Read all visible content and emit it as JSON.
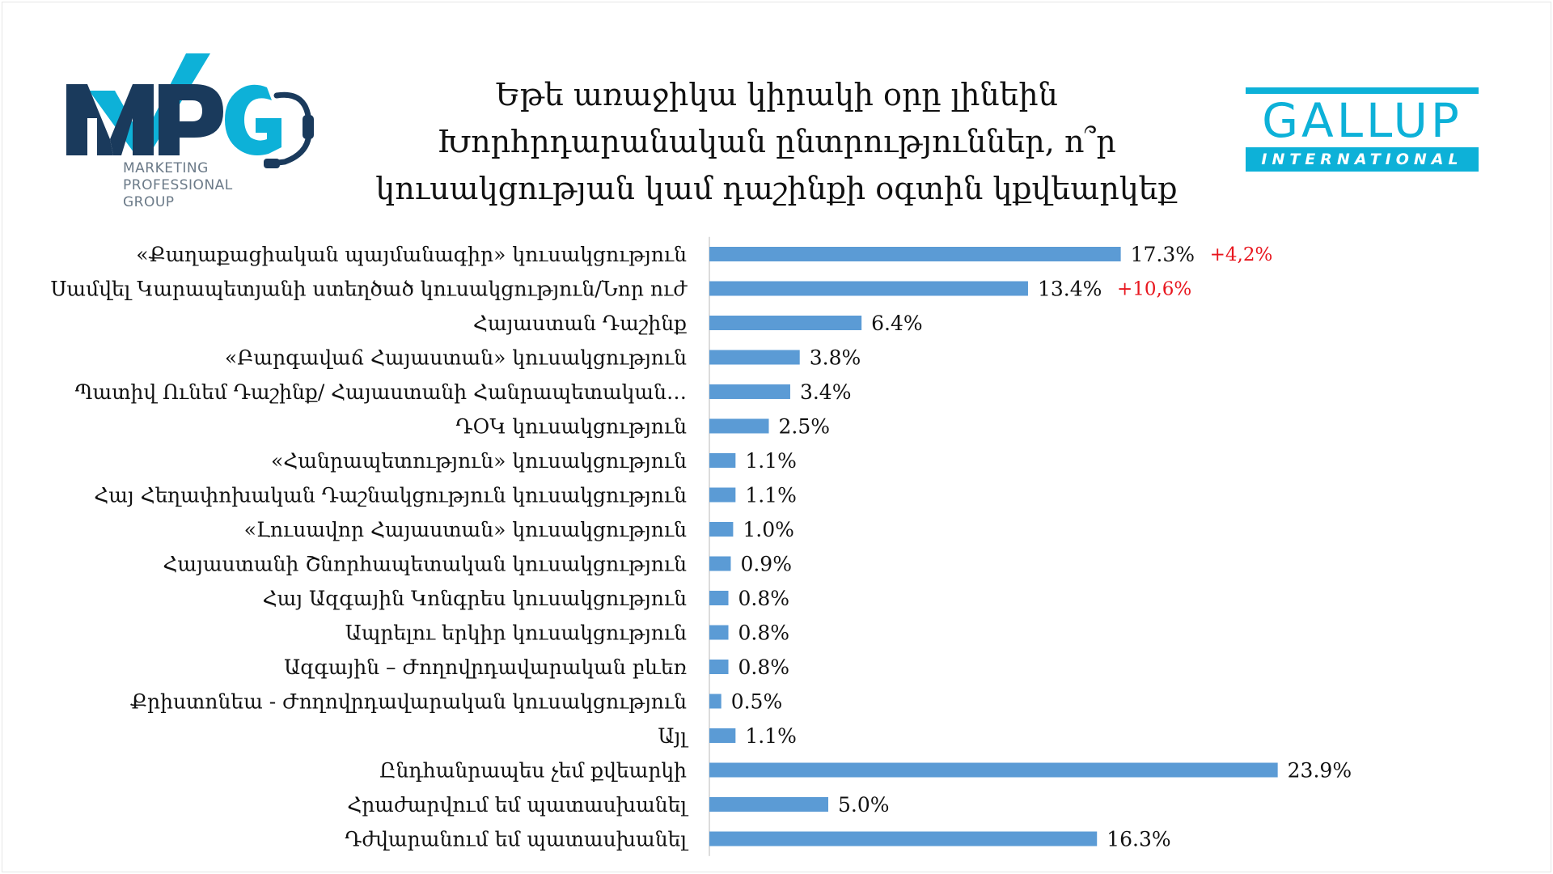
{
  "logos": {
    "mpg": {
      "letters": "MPG",
      "tagline": [
        "MARKETING",
        "PROFESSIONAL",
        "GROUP"
      ],
      "colors": {
        "navy": "#1a3a5c",
        "cyan": "#0db1d8"
      }
    },
    "gallup": {
      "word": "GALLUP",
      "sub": "INTERNATIONAL",
      "color": "#0db1d8"
    }
  },
  "chart_data": {
    "type": "bar",
    "orientation": "horizontal",
    "title": [
      "Եթե առաջիկա կիրակի օրը լինեին",
      "Խորհրդարանական ընտրություններ, ո՞ր",
      "կուսակցության կամ դաշինքի օգտին կքվեարկեք"
    ],
    "categories": [
      "«Քաղաքացիական պայմանագիր» կուսակցություն",
      "Սամվել Կարապետյանի ստեղծած կուսակցություն/Նոր ուժ",
      "Հայաստան Դաշինք",
      "«Բարգավաճ Հայաստան» կուսակցություն",
      "Պատիվ Ունեմ Դաշինք/ Հայաստանի Հանրապետական…",
      "ԴՕԿ կուսակցություն",
      "«Հանրապետություն» կուսակցություն",
      "Հայ Հեղափոխական Դաշնակցություն կուսակցություն",
      "«Լուսավոր Հայաստան» կուսակցություն",
      "Հայաստանի Շնորհապետական կուսակցություն",
      "Հայ Ազգային Կոնգրես կուսակցություն",
      "Ապրելու երկիր կուսակցություն",
      "Ազգային – Ժողովրդավարական բևեռ",
      "Քրիստոնեա - Ժողովրդավարական կուսակցություն",
      "Այլ",
      "Ընդհանրապես չեմ քվեարկի",
      "Հրաժարվում եմ պատասխանել",
      "Դժվարանում եմ պատասխանել"
    ],
    "values": [
      17.3,
      13.4,
      6.4,
      3.8,
      3.4,
      2.5,
      1.1,
      1.1,
      1.0,
      0.9,
      0.8,
      0.8,
      0.8,
      0.5,
      1.1,
      23.9,
      5.0,
      16.3
    ],
    "value_labels": [
      "17.3%",
      "13.4%",
      "6.4%",
      "3.8%",
      "3.4%",
      "2.5%",
      "1.1%",
      "1.1%",
      "1.0%",
      "0.9%",
      "0.8%",
      "0.8%",
      "0.8%",
      "0.5%",
      "1.1%",
      "23.9%",
      "5.0%",
      "16.3%"
    ],
    "change_labels": [
      "+4,2%",
      "+10,6%",
      "",
      "",
      "",
      "",
      "",
      "",
      "",
      "",
      "",
      "",
      "",
      "",
      "",
      "",
      "",
      ""
    ],
    "xlim": [
      0,
      25
    ],
    "grid": false,
    "legend": "none",
    "bar_color": "#5b9bd5",
    "change_color": "#e8161e"
  }
}
